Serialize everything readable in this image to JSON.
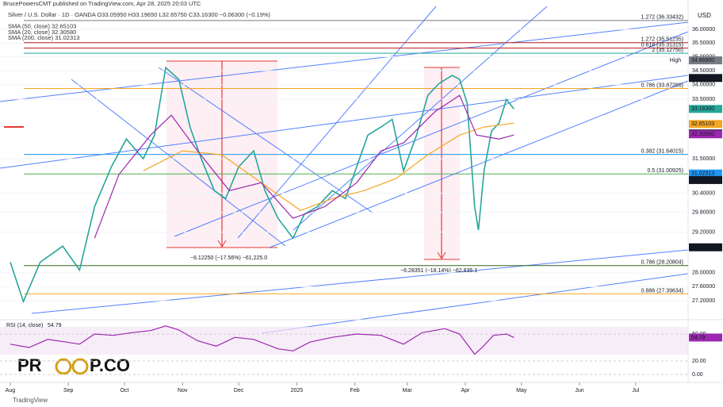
{
  "chart_data": {
    "type": "line",
    "header": "BrucePowersCMT published on TradingView.com, Apr 28, 2025 20:03 UTC",
    "title": "Silver / U.S. Dollar · 1D · OANDA  O33.05950  H33.19650  L32.65750  C33.16300  −0.06300 (−0.19%)",
    "currency": "USD",
    "log_scale": true,
    "xlim": [
      -5.5,
      362
    ],
    "xticks": [
      {
        "value": 0,
        "label": "Aug"
      },
      {
        "value": 31,
        "label": "Sep"
      },
      {
        "value": 61,
        "label": "Oct"
      },
      {
        "value": 92,
        "label": "Nov"
      },
      {
        "value": 122,
        "label": "Dec"
      },
      {
        "value": 153,
        "label": "2025"
      },
      {
        "value": 184,
        "label": "Feb"
      },
      {
        "value": 212,
        "label": "Mar"
      },
      {
        "value": 243,
        "label": "Apr"
      },
      {
        "value": 273,
        "label": "May"
      },
      {
        "value": 304,
        "label": "Jun"
      },
      {
        "value": 334,
        "label": "Jul"
      }
    ],
    "ylim": [
      26.74,
      36.87
    ],
    "yticks": [
      {
        "value": 36,
        "label": "36.00000"
      },
      {
        "value": 35.5,
        "label": "35.50000"
      },
      {
        "value": 35,
        "label": "35.00000"
      },
      {
        "value": 34.5,
        "label": "34.50000"
      },
      {
        "value": 34,
        "label": "34.00000"
      },
      {
        "value": 33.5,
        "label": "33.50000"
      },
      {
        "value": 31.5,
        "label": "31.50000"
      },
      {
        "value": 30.4,
        "label": "30.40000"
      },
      {
        "value": 29.8,
        "label": "29.80000"
      },
      {
        "value": 29.2,
        "label": "29.20000"
      },
      {
        "value": 28,
        "label": "28.00000"
      },
      {
        "value": 27.6,
        "label": "27.60000"
      },
      {
        "value": 27.2,
        "label": "27.20000"
      }
    ],
    "series": [
      {
        "name": "Silver / U.S. Dollar",
        "color": "#26a69a",
        "x": [
          0,
          7,
          16,
          28,
          37,
          45,
          54,
          62,
          71,
          77,
          83,
          90,
          96,
          102,
          109,
          115,
          122,
          130,
          136,
          143,
          151,
          157,
          164,
          172,
          179,
          185,
          191,
          198,
          204,
          210,
          217,
          223,
          229,
          236,
          240,
          244,
          248,
          250,
          253,
          257,
          261,
          265,
          269
        ],
        "values": [
          28.31,
          27.18,
          28.31,
          28.78,
          28.08,
          29.98,
          31.24,
          32.15,
          31.5,
          32.28,
          34.61,
          34.19,
          32.55,
          31.5,
          30.48,
          30.23,
          31.24,
          31.76,
          30.48,
          29.62,
          29.02,
          29.74,
          29.98,
          30.48,
          30.23,
          31.24,
          32.28,
          32.55,
          32.81,
          31.11,
          32.28,
          33.63,
          34.05,
          34.33,
          34.19,
          33.36,
          29.98,
          29.26,
          31.11,
          32.41,
          32.68,
          33.49,
          33.16
        ]
      },
      {
        "name": "SMA (50, close) 32.65103",
        "color": "#f5a623",
        "x": [
          71,
          92,
          113,
          134,
          155,
          172,
          189,
          206,
          223,
          240,
          253,
          269
        ],
        "values": [
          31.11,
          31.76,
          31.63,
          30.73,
          29.86,
          30.23,
          30.48,
          30.86,
          31.63,
          32.28,
          32.55,
          32.68
        ]
      },
      {
        "name": "SMA (20, close) 32.30580",
        "color": "#9c27b0",
        "x": [
          45,
          58,
          75,
          86,
          100,
          117,
          134,
          151,
          168,
          185,
          198,
          210,
          227,
          240,
          249,
          261,
          269
        ],
        "values": [
          29.02,
          30.99,
          32.28,
          32.95,
          31.76,
          30.48,
          30.73,
          29.62,
          29.98,
          30.73,
          31.76,
          32.02,
          33.08,
          33.63,
          32.28,
          32.15,
          32.28
        ]
      }
    ],
    "sma200_label": "SMA (200, close) 31.02313",
    "levels": [
      {
        "value": 36.33432,
        "label": "1.272 (36.33432)",
        "color": "#787b86"
      },
      {
        "value": 35.51235,
        "label": "1.272 (35.51235)",
        "color": "#b71c1c"
      },
      {
        "value": 35.31315,
        "label": "0.618 (35.31315)",
        "color": "#b71c1c"
      },
      {
        "value": 35.1275,
        "label": "2 (35.12750)",
        "color": "#26a69a"
      },
      {
        "value": 33.87286,
        "label": "0.786 (33.87286)",
        "color": "#f5a623"
      },
      {
        "value": 31.64015,
        "label": "0.382 (31.64015)",
        "color": "#2196f3"
      },
      {
        "value": 31.00925,
        "label": "0.5 (31.00925)",
        "color": "#4caf50"
      },
      {
        "value": 28.20804,
        "label": "0.786 (28.20804)",
        "color": "#33691e"
      },
      {
        "value": 27.39634,
        "label": "0.886 (27.39634)",
        "color": "#f5a623"
      }
    ],
    "price_tags": [
      {
        "value": 34.869,
        "label": "34.86900",
        "color": "#787b86"
      },
      {
        "value": 34.2405,
        "label": "34.24050",
        "color": "#131722"
      },
      {
        "value": 33.163,
        "label": "33.16300",
        "color": "#26a69a"
      },
      {
        "value": 32.65103,
        "label": "32.65103",
        "color": "#f5a623"
      },
      {
        "value": 32.333,
        "label": "32.33300",
        "color": "#131722"
      },
      {
        "value": 32.3058,
        "label": "32.30580",
        "color": "#9c27b0"
      },
      {
        "value": 31.02313,
        "label": "31.02313",
        "color": "#2196f3"
      },
      {
        "value": 30.81485,
        "label": "30.81485",
        "color": "#131722"
      },
      {
        "value": 28.7465,
        "label": "28.74650",
        "color": "#131722"
      }
    ],
    "high_label": "High",
    "annotations": [
      "−6.12250 (−17.56%) −61,225.0",
      "−6.28351 (−18.14%) −62,835.1"
    ],
    "rsi": {
      "label": "RSI (14, close)",
      "last": 54.79,
      "last_label": "54.79",
      "color": "#9c27b0",
      "ylim": [
        -7,
        78.8
      ],
      "yticks": [
        {
          "value": 60,
          "label": "60.00"
        },
        {
          "value": 20,
          "label": "20.00"
        },
        {
          "value": 0,
          "label": "0.00"
        }
      ],
      "x": [
        0,
        10,
        20,
        30,
        37,
        45,
        55,
        65,
        75,
        83,
        90,
        100,
        110,
        120,
        130,
        143,
        151,
        160,
        172,
        185,
        198,
        210,
        220,
        232,
        240,
        248,
        252,
        258,
        265,
        269
      ],
      "values": [
        45,
        40,
        52,
        48,
        45,
        60,
        58,
        62,
        65,
        72,
        66,
        50,
        42,
        55,
        52,
        38,
        35,
        48,
        55,
        60,
        58,
        45,
        62,
        68,
        60,
        30,
        40,
        58,
        60,
        54.79
      ]
    },
    "watermark": [
      "PR",
      "P.CO"
    ],
    "footer": "TradingView"
  }
}
